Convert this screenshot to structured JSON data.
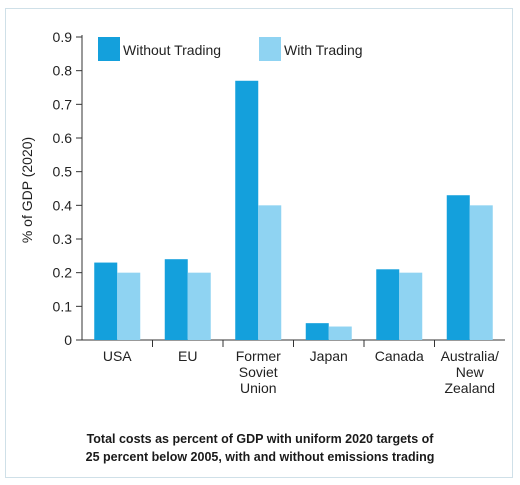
{
  "chart_data": {
    "type": "bar",
    "categories": [
      "USA",
      "EU",
      "Former Soviet Union",
      "Japan",
      "Canada",
      "Australia/ New Zealand"
    ],
    "category_lines": [
      [
        "USA"
      ],
      [
        "EU"
      ],
      [
        "Former",
        "Soviet",
        "Union"
      ],
      [
        "Japan"
      ],
      [
        "Canada"
      ],
      [
        "Australia/",
        "New",
        "Zealand"
      ]
    ],
    "series": [
      {
        "name": "Without Trading",
        "color": "#14a0dc",
        "values": [
          0.23,
          0.24,
          0.77,
          0.05,
          0.21,
          0.43
        ]
      },
      {
        "name": "With Trading",
        "color": "#8fd3f2",
        "values": [
          0.2,
          0.2,
          0.4,
          0.04,
          0.2,
          0.4
        ]
      }
    ],
    "ylabel": "% of GDP (2020)",
    "ylim": [
      0,
      0.9
    ],
    "yticks": [
      "0",
      "0.1",
      "0.2",
      "0.3",
      "0.4",
      "0.5",
      "0.6",
      "0.7",
      "0.8",
      "0.9"
    ],
    "grid": false,
    "legend_position": "top-left"
  },
  "caption": {
    "line1": "Total costs as percent of GDP with uniform 2020 targets of",
    "line2": "25 percent below 2005, with and without emissions trading"
  }
}
